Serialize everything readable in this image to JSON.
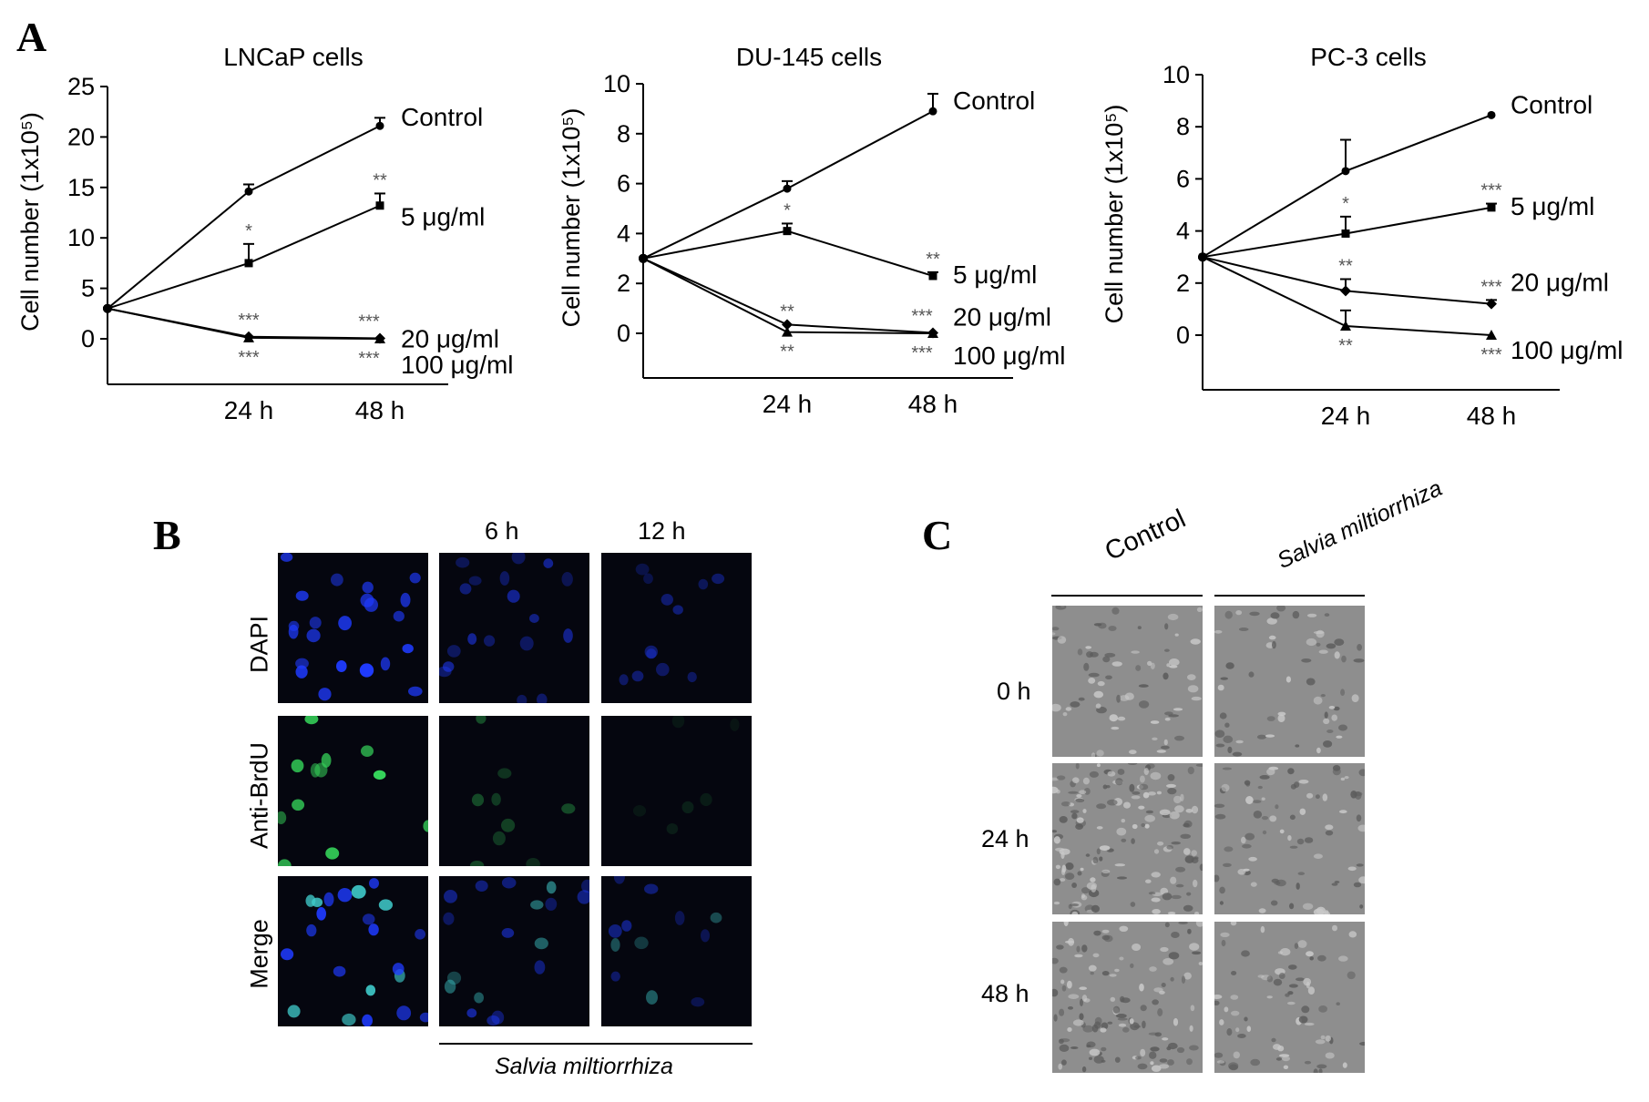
{
  "panels": {
    "a": "A",
    "b": "B",
    "c": "C"
  },
  "chart_data": [
    {
      "type": "line",
      "title": "LNCaP cells",
      "ylabel": "Cell number (1x10⁵)",
      "ylim": [
        0,
        25
      ],
      "yticks": [
        0,
        5,
        10,
        15,
        20,
        25
      ],
      "x_categories": [
        "",
        "24 h",
        "48 h"
      ],
      "series": [
        {
          "name": "Control",
          "marker": "circle",
          "values": [
            3,
            14.6,
            21.1
          ],
          "errors": [
            0,
            0.7,
            0.8
          ],
          "sig": [
            "",
            "",
            ""
          ]
        },
        {
          "name": "5 μg/ml",
          "marker": "square",
          "values": [
            3,
            7.5,
            13.2
          ],
          "errors": [
            0,
            1.9,
            1.2
          ],
          "sig": [
            "",
            "*",
            "**"
          ]
        },
        {
          "name": "20 μg/ml",
          "marker": "diamond",
          "values": [
            3,
            0.2,
            0.05
          ],
          "errors": [
            0,
            0,
            0
          ],
          "sig": [
            "",
            "***",
            "***"
          ]
        },
        {
          "name": "100 μg/ml",
          "marker": "triangle",
          "values": [
            3,
            0.1,
            0.0
          ],
          "errors": [
            0,
            0,
            0
          ],
          "sig": [
            "",
            "***",
            "***"
          ]
        }
      ]
    },
    {
      "type": "line",
      "title": "DU-145 cells",
      "ylabel": "Cell number (1x10⁵)",
      "ylim": [
        0,
        10
      ],
      "yticks": [
        0,
        2,
        4,
        6,
        8,
        10
      ],
      "x_categories": [
        "",
        "24 h",
        "48 h"
      ],
      "series": [
        {
          "name": "Control",
          "marker": "circle",
          "values": [
            3,
            5.8,
            8.9
          ],
          "errors": [
            0,
            0.3,
            0.7
          ],
          "sig": [
            "",
            "",
            ""
          ]
        },
        {
          "name": "5 μg/ml",
          "marker": "square",
          "values": [
            3,
            4.1,
            2.3
          ],
          "errors": [
            0,
            0.3,
            0.15
          ],
          "sig": [
            "",
            "*",
            "**"
          ]
        },
        {
          "name": "20 μg/ml",
          "marker": "diamond",
          "values": [
            3,
            0.35,
            0.02
          ],
          "errors": [
            0,
            0,
            0
          ],
          "sig": [
            "",
            "**",
            "***"
          ]
        },
        {
          "name": "100 μg/ml",
          "marker": "triangle",
          "values": [
            3,
            0.05,
            0.0
          ],
          "errors": [
            0,
            0,
            0
          ],
          "sig": [
            "",
            "**",
            "***"
          ]
        }
      ]
    },
    {
      "type": "line",
      "title": "PC-3 cells",
      "ylabel": "Cell number (1x10⁵)",
      "ylim": [
        0,
        10
      ],
      "yticks": [
        0,
        2,
        4,
        6,
        8,
        10
      ],
      "x_categories": [
        "",
        "24 h",
        "48 h"
      ],
      "series": [
        {
          "name": "Control",
          "marker": "circle",
          "values": [
            3,
            6.3,
            8.45
          ],
          "errors": [
            0,
            1.2,
            0
          ],
          "sig": [
            "",
            "",
            ""
          ]
        },
        {
          "name": "5 μg/ml",
          "marker": "square",
          "values": [
            3,
            3.9,
            4.9
          ],
          "errors": [
            0,
            0.65,
            0.15
          ],
          "sig": [
            "",
            "*",
            "***"
          ]
        },
        {
          "name": "20 μg/ml",
          "marker": "diamond",
          "values": [
            3,
            1.7,
            1.2
          ],
          "errors": [
            0,
            0.45,
            0.15
          ],
          "sig": [
            "",
            "**",
            "***"
          ]
        },
        {
          "name": "100 μg/ml",
          "marker": "triangle",
          "values": [
            3,
            0.35,
            0.0
          ],
          "errors": [
            0,
            0.6,
            0
          ],
          "sig": [
            "",
            "**",
            "***"
          ]
        }
      ]
    }
  ],
  "panel_b": {
    "col_labels": [
      "",
      "6 h",
      "12 h"
    ],
    "row_labels": [
      "DAPI",
      "Anti-BrdU",
      "Merge"
    ],
    "footer": "Salvia miltiorrhiza",
    "colors": {
      "dapi": "#1f3bff",
      "brdu": "#35d35a",
      "merge": "#3fc9c9"
    }
  },
  "panel_c": {
    "col_labels": [
      "Control",
      "Salvia miltiorrhiza"
    ],
    "row_labels": [
      "0 h",
      "24 h",
      "48 h"
    ]
  }
}
